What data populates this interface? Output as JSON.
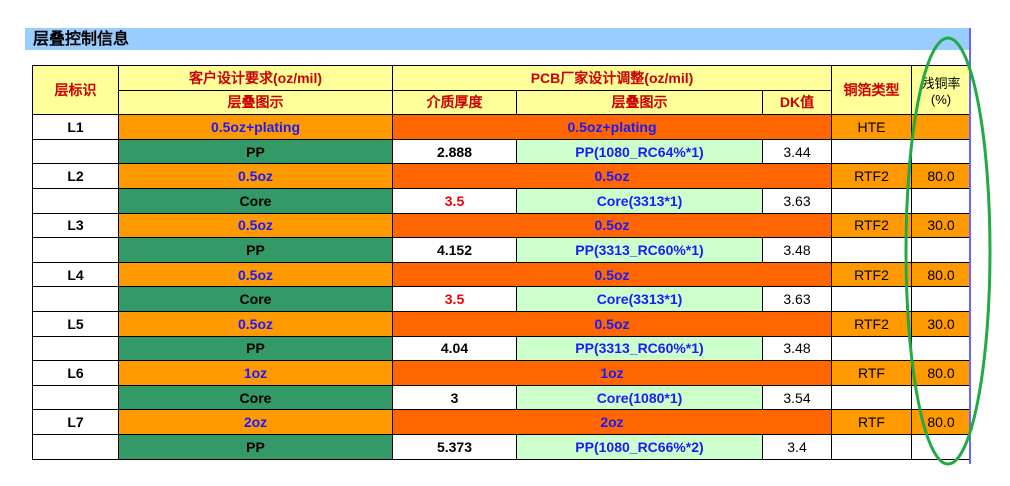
{
  "header": {
    "title": "层叠控制信息"
  },
  "table": {
    "group_headers": {
      "layer_id": "层标识",
      "customer": "客户设计要求(oz/mil)",
      "pcb": "PCB厂家设计调整(oz/mil)",
      "foil_type": "铜箔类型",
      "residual": "残铜率",
      "residual_unit": "(%)"
    },
    "sub_headers": {
      "customer_stack": "层叠图示",
      "thickness": "介质厚度",
      "pcb_stack": "层叠图示",
      "dk": "DK值"
    },
    "rows": [
      {
        "layer": "L1",
        "customer": "0.5oz+plating",
        "pcb": "0.5oz+plating",
        "foil": "HTE",
        "residual": null
      },
      {
        "customer": "PP",
        "thickness": "2.888",
        "stackup": "PP(1080_RC64%*1)",
        "dk": "3.44"
      },
      {
        "layer": "L2",
        "customer": "0.5oz",
        "pcb": "0.5oz",
        "foil": "RTF2",
        "residual": "80.0"
      },
      {
        "customer": "Core",
        "thickness": "3.5",
        "stackup": "Core(3313*1)",
        "dk": "3.63"
      },
      {
        "layer": "L3",
        "customer": "0.5oz",
        "pcb": "0.5oz",
        "foil": "RTF2",
        "residual": "30.0"
      },
      {
        "customer": "PP",
        "thickness": "4.152",
        "stackup": "PP(3313_RC60%*1)",
        "dk": "3.48"
      },
      {
        "layer": "L4",
        "customer": "0.5oz",
        "pcb": "0.5oz",
        "foil": "RTF2",
        "residual": "80.0"
      },
      {
        "customer": "Core",
        "thickness": "3.5",
        "stackup": "Core(3313*1)",
        "dk": "3.63"
      },
      {
        "layer": "L5",
        "customer": "0.5oz",
        "pcb": "0.5oz",
        "foil": "RTF2",
        "residual": "30.0"
      },
      {
        "customer": "PP",
        "thickness": "4.04",
        "stackup": "PP(3313_RC60%*1)",
        "dk": "3.48"
      },
      {
        "layer": "L6",
        "customer": "1oz",
        "pcb": "1oz",
        "foil": "RTF",
        "residual": "80.0"
      },
      {
        "customer": "Core",
        "thickness": "3",
        "stackup": "Core(1080*1)",
        "dk": "3.54"
      },
      {
        "layer": "L7",
        "customer": "2oz",
        "pcb": "2oz",
        "foil": "RTF",
        "residual": "80.0"
      },
      {
        "customer": "PP",
        "thickness": "5.373",
        "stackup": "PP(1080_RC66%*2)",
        "dk": "3.4"
      }
    ]
  }
}
